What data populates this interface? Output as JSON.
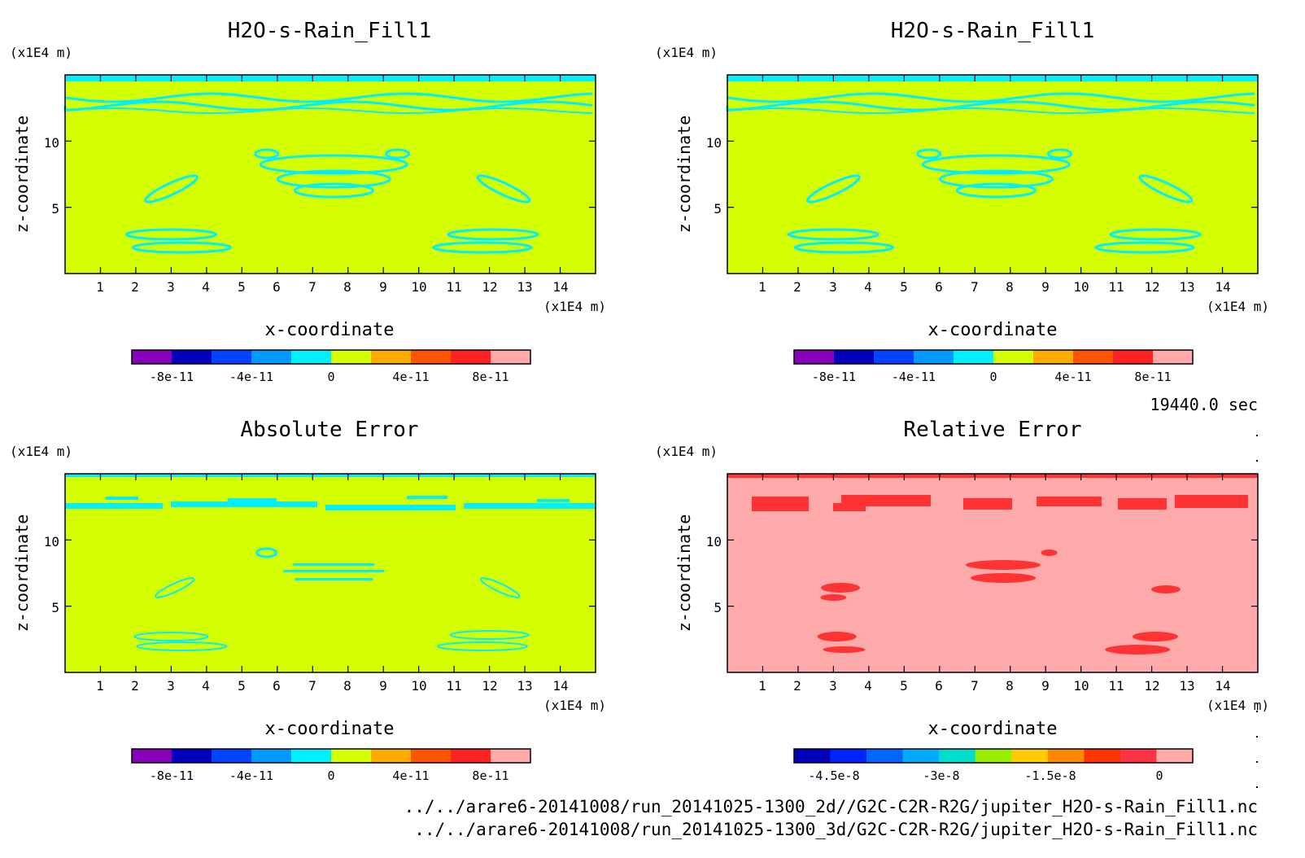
{
  "time_label": "19440.0 sec",
  "footer": {
    "line1": "../../arare6-20141008/run_20141025-1300_2d//G2C-C2R-R2G/jupiter_H2O-s-Rain_Fill1.nc",
    "line2": "../../arare6-20141008/run_20141025-1300_3d/G2C-C2R-R2G/jupiter_H2O-s-Rain_Fill1.nc"
  },
  "colors": {
    "field": "#d4ff00",
    "cyan": "#00f0ff",
    "rel_bg": "#ffaaaa",
    "rel_red": "#ff3333"
  },
  "chart_data": [
    {
      "type": "heatmap",
      "title": "H2O-s-Rain_Fill1",
      "xlabel": "x-coordinate",
      "ylabel": "z-coordinate",
      "x_unit": "(x1E4 m)",
      "y_unit": "(x1E4 m)",
      "xlim": [
        0,
        15
      ],
      "ylim": [
        0,
        15
      ],
      "x_ticks": [
        1,
        2,
        3,
        4,
        5,
        6,
        7,
        8,
        9,
        10,
        11,
        12,
        13,
        14
      ],
      "y_ticks": [
        5,
        10
      ],
      "colorbar": {
        "colors": [
          "#8800bb",
          "#0000bb",
          "#0044ff",
          "#0099ff",
          "#00f0ff",
          "#d4ff00",
          "#ffaa00",
          "#ff5500",
          "#ff2222",
          "#ffaaaa"
        ],
        "tick_labels": [
          "-8e-11",
          "-4e-11",
          "0",
          "4e-11",
          "8e-11"
        ]
      }
    },
    {
      "type": "heatmap",
      "title": "H2O-s-Rain_Fill1",
      "xlabel": "x-coordinate",
      "ylabel": "z-coordinate",
      "x_unit": "(x1E4 m)",
      "y_unit": "(x1E4 m)",
      "xlim": [
        0,
        15
      ],
      "ylim": [
        0,
        15
      ],
      "x_ticks": [
        1,
        2,
        3,
        4,
        5,
        6,
        7,
        8,
        9,
        10,
        11,
        12,
        13,
        14
      ],
      "y_ticks": [
        5,
        10
      ],
      "colorbar": {
        "colors": [
          "#8800bb",
          "#0000bb",
          "#0044ff",
          "#0099ff",
          "#00f0ff",
          "#d4ff00",
          "#ffaa00",
          "#ff5500",
          "#ff2222",
          "#ffaaaa"
        ],
        "tick_labels": [
          "-8e-11",
          "-4e-11",
          "0",
          "4e-11",
          "8e-11"
        ]
      }
    },
    {
      "type": "heatmap",
      "title": "Absolute Error",
      "xlabel": "x-coordinate",
      "ylabel": "z-coordinate",
      "x_unit": "(x1E4 m)",
      "y_unit": "(x1E4 m)",
      "xlim": [
        0,
        15
      ],
      "ylim": [
        0,
        15
      ],
      "x_ticks": [
        1,
        2,
        3,
        4,
        5,
        6,
        7,
        8,
        9,
        10,
        11,
        12,
        13,
        14
      ],
      "y_ticks": [
        5,
        10
      ],
      "colorbar": {
        "colors": [
          "#8800bb",
          "#0000bb",
          "#0044ff",
          "#0099ff",
          "#00f0ff",
          "#d4ff00",
          "#ffaa00",
          "#ff5500",
          "#ff2222",
          "#ffaaaa"
        ],
        "tick_labels": [
          "-8e-11",
          "-4e-11",
          "0",
          "4e-11",
          "8e-11"
        ]
      }
    },
    {
      "type": "heatmap",
      "title": "Relative Error",
      "xlabel": "x-coordinate",
      "ylabel": "z-coordinate",
      "x_unit": "(x1E4 m)",
      "y_unit": "(x1E4 m)",
      "xlim": [
        0,
        15
      ],
      "ylim": [
        0,
        15
      ],
      "x_ticks": [
        1,
        2,
        3,
        4,
        5,
        6,
        7,
        8,
        9,
        10,
        11,
        12,
        13,
        14
      ],
      "y_ticks": [
        5,
        10
      ],
      "colorbar": {
        "colors": [
          "#0000bb",
          "#0022ff",
          "#0066ff",
          "#00aaff",
          "#00ddcc",
          "#99ee00",
          "#ffcc00",
          "#ff8800",
          "#ff3300",
          "#ff3344",
          "#ffaaaa"
        ],
        "tick_labels": [
          "-4.5e-8",
          "-3e-8",
          "-1.5e-8",
          "0"
        ]
      }
    }
  ]
}
